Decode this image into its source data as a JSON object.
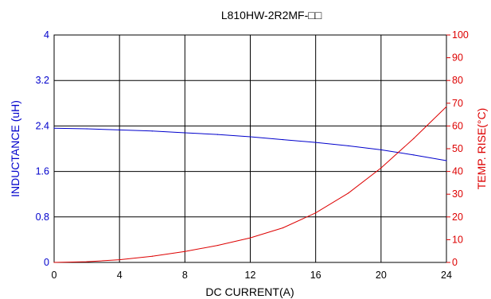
{
  "chart_data": {
    "type": "line",
    "title": "L810HW-2R2MF-□□",
    "xlabel": "DC CURRENT(A)",
    "ylabel_left": "INDUCTANCE (uH)",
    "ylabel_right": "TEMP. RISE(°C)",
    "xlim": [
      0,
      24
    ],
    "ylim_left": [
      0,
      4
    ],
    "ylim_right": [
      0,
      100
    ],
    "x_ticks": [
      "0",
      "4",
      "8",
      "12",
      "16",
      "20",
      "24"
    ],
    "y_left_ticks": [
      "0",
      "0.8",
      "1.6",
      "2.4",
      "3.2",
      "4"
    ],
    "y_right_ticks": [
      "0",
      "10",
      "20",
      "30",
      "40",
      "50",
      "60",
      "70",
      "80",
      "90",
      "100"
    ],
    "grid": true,
    "colors": {
      "inductance": "#0000cc",
      "temperature": "#dd0000",
      "grid": "#000000"
    },
    "series": [
      {
        "axis": "left",
        "x": [
          0,
          2,
          4,
          6,
          8,
          10,
          12,
          14,
          16,
          18,
          20,
          22,
          24
        ],
        "values": [
          2.36,
          2.35,
          2.33,
          2.31,
          2.28,
          2.25,
          2.21,
          2.16,
          2.11,
          2.05,
          1.98,
          1.89,
          1.79
        ]
      },
      {
        "axis": "right",
        "x": [
          0,
          2,
          4,
          6,
          8,
          10,
          12,
          14,
          16,
          18,
          20,
          22,
          24
        ],
        "values": [
          0,
          0.3,
          1.2,
          2.7,
          4.8,
          7.5,
          10.8,
          15.2,
          21.8,
          30.5,
          41.5,
          54.5,
          68.5
        ]
      }
    ]
  }
}
